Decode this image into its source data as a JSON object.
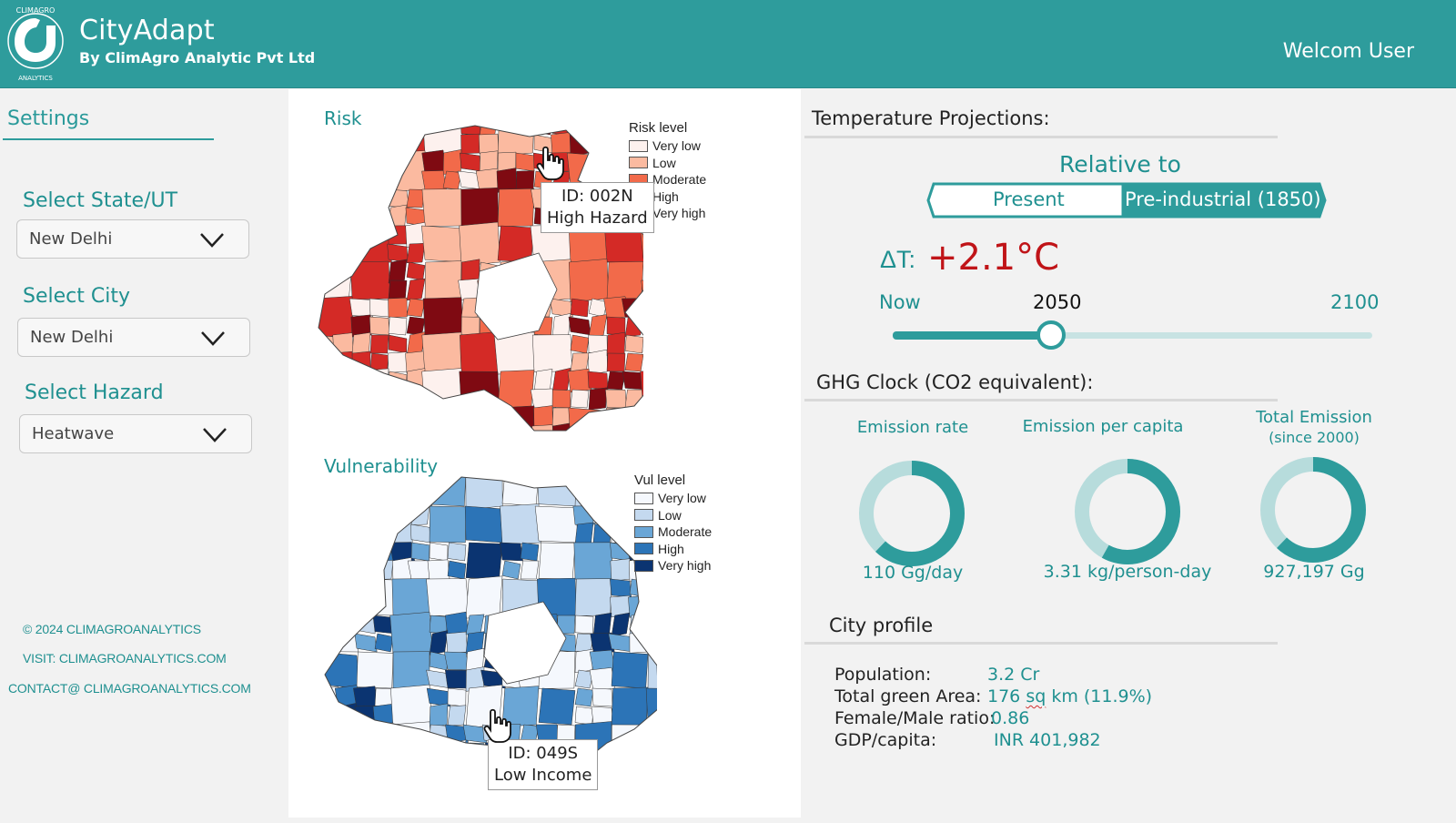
{
  "header": {
    "app_name": "CityAdapt",
    "subtitle": "By ClimAgro Analytic Pvt Ltd",
    "welcome": "Welcom User",
    "logo_text_top": "CLIMAGRO",
    "logo_text_bottom": "ANALYTICS"
  },
  "sidebar": {
    "title": "Settings",
    "fields": [
      {
        "label": "Select State/UT",
        "value": "New Delhi"
      },
      {
        "label": "Select City",
        "value": "New Delhi"
      },
      {
        "label": "Select Hazard",
        "value": "Heatwave"
      }
    ],
    "footer": {
      "copyright": "© 2024 CLIMAGROANALYTICS",
      "visit": "VISIT: CLIMAGROANALYTICS.COM",
      "contact": "CONTACT@ CLIMAGROANALYTICS.COM"
    }
  },
  "risk_map": {
    "title": "Risk",
    "legend_title": "Risk level",
    "legend": [
      {
        "label": "Very low",
        "color": "#fdf1ee"
      },
      {
        "label": "Low",
        "color": "#fbbaa0"
      },
      {
        "label": "Moderate",
        "color": "#f26a4a"
      },
      {
        "label": "High",
        "color": "#d42a26"
      },
      {
        "label": "Very high",
        "color": "#7f0a12"
      }
    ],
    "tooltip": {
      "id": "ID: 002N",
      "label": "High Hazard"
    }
  },
  "vul_map": {
    "title": "Vulnerability",
    "legend_title": "Vul level",
    "legend": [
      {
        "label": "Very low",
        "color": "#f5f8fd"
      },
      {
        "label": "Low",
        "color": "#c4d9ef"
      },
      {
        "label": "Moderate",
        "color": "#6aa6d6"
      },
      {
        "label": "High",
        "color": "#2c74b7"
      },
      {
        "label": "Very high",
        "color": "#0b3471"
      }
    ],
    "tooltip": {
      "id": "ID: 049S",
      "label": "Low Income"
    }
  },
  "temperature": {
    "title": "Temperature Projections:",
    "relative_label": "Relative to",
    "options": [
      "Present",
      "Pre-industrial (1850)"
    ],
    "selected_option": "Pre-industrial (1850)",
    "delta_label": "ΔT:",
    "delta_value": "+2.1°C",
    "slider": {
      "start": "Now",
      "current": "2050",
      "end": "2100",
      "position_fraction": 0.33
    }
  },
  "ghg": {
    "title": "GHG Clock (CO2 equivalent):",
    "metrics": [
      {
        "title": "Emission rate",
        "subtitle": "",
        "value": "110 Gg/day",
        "fill_fraction": 0.62
      },
      {
        "title": "Emission per capita",
        "subtitle": "",
        "value": "3.31 kg/person-day",
        "fill_fraction": 0.58
      },
      {
        "title": "Total Emission",
        "subtitle": "(since 2000)",
        "value": "927,197 Gg",
        "fill_fraction": 0.62
      }
    ]
  },
  "profile": {
    "title": "City profile",
    "rows": [
      {
        "key": "Population:",
        "value": "3.2 Cr"
      },
      {
        "key": "Total green Area:",
        "value_pre": "176 ",
        "value_underlined": "sq",
        "value_post": " km (11.9%)"
      },
      {
        "key": "Female/Male ratio:",
        "value": "0.86"
      },
      {
        "key": "GDP/capita:",
        "value": "INR 401,982"
      }
    ]
  },
  "colors": {
    "accent": "#2e9c9c",
    "accent_text": "#1f9090",
    "delta_red": "#c01418",
    "donut_light": "#b7dcdc"
  }
}
